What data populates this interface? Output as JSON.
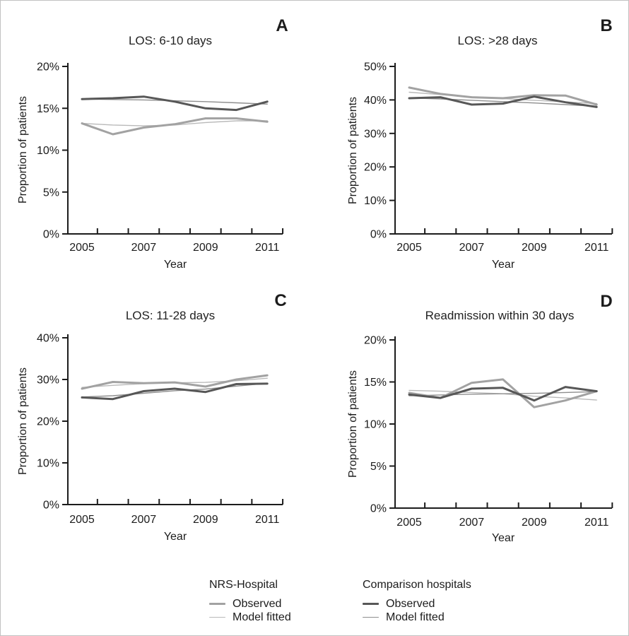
{
  "figure": {
    "text_color": "#1c1c1c",
    "axis_color": "#1c1c1c",
    "background": "#ffffff"
  },
  "series_styles": {
    "nrs_observed": {
      "color": "#a2a2a2",
      "width": 3
    },
    "nrs_fitted": {
      "color": "#b9b9b9",
      "width": 1.4
    },
    "comp_observed": {
      "color": "#575757",
      "width": 3
    },
    "comp_fitted": {
      "color": "#8e8e8e",
      "width": 1.4
    }
  },
  "legend": {
    "groups": [
      {
        "title": "NRS-Hospital",
        "items": [
          {
            "label": "Observed",
            "series": "nrs_observed"
          },
          {
            "label": "Model fitted",
            "series": "nrs_fitted"
          }
        ]
      },
      {
        "title": "Comparison hospitals",
        "items": [
          {
            "label": "Observed",
            "series": "comp_observed"
          },
          {
            "label": "Model fitted",
            "series": "comp_fitted"
          }
        ]
      }
    ]
  },
  "chart_data": [
    {
      "type": "line",
      "panel_letter": "A",
      "title": "LOS: 6-10 days",
      "xlabel": "Year",
      "ylabel": "Proportion of patients",
      "x": [
        2005,
        2006,
        2007,
        2008,
        2009,
        2010,
        2011
      ],
      "x_tick_years": [
        2005,
        2007,
        2009,
        2011
      ],
      "x_tick_labels": [
        "2005",
        "2007",
        "2009",
        "2011"
      ],
      "ylim": [
        0,
        20
      ],
      "y_ticks": [
        0,
        5,
        10,
        15,
        20
      ],
      "y_tick_labels": [
        "0%",
        "5%",
        "10%",
        "15%",
        "20%"
      ],
      "series": [
        {
          "name": "NRS-Hospital Observed",
          "key": "nrs_observed",
          "values": [
            13.2,
            11.9,
            12.7,
            13.1,
            13.8,
            13.8,
            13.4
          ]
        },
        {
          "name": "NRS-Hospital Model fitted",
          "key": "nrs_fitted",
          "values": [
            13.2,
            13.0,
            12.9,
            13.0,
            13.3,
            13.5,
            13.5
          ]
        },
        {
          "name": "Comparison hospitals Observed",
          "key": "comp_observed",
          "values": [
            16.1,
            16.2,
            16.4,
            15.8,
            15.0,
            14.8,
            15.8
          ]
        },
        {
          "name": "Comparison hospitals Model fitted",
          "key": "comp_fitted",
          "values": [
            16.1,
            16.05,
            16.0,
            15.9,
            15.8,
            15.65,
            15.5
          ]
        }
      ]
    },
    {
      "type": "line",
      "panel_letter": "B",
      "title": "LOS: >28 days",
      "xlabel": "Year",
      "ylabel": "Proportion of patients",
      "x": [
        2005,
        2006,
        2007,
        2008,
        2009,
        2010,
        2011
      ],
      "x_tick_years": [
        2005,
        2007,
        2009,
        2011
      ],
      "x_tick_labels": [
        "2005",
        "2007",
        "2009",
        "2011"
      ],
      "ylim": [
        0,
        50
      ],
      "y_ticks": [
        0,
        10,
        20,
        30,
        40,
        50
      ],
      "y_tick_labels": [
        "0%",
        "10%",
        "20%",
        "30%",
        "40%",
        "50%"
      ],
      "series": [
        {
          "name": "NRS-Hospital Observed",
          "key": "nrs_observed",
          "values": [
            43.7,
            41.8,
            40.8,
            40.5,
            41.4,
            41.3,
            38.6
          ]
        },
        {
          "name": "NRS-Hospital Model fitted",
          "key": "nrs_fitted",
          "values": [
            42.3,
            41.6,
            40.9,
            40.4,
            39.9,
            39.4,
            38.9
          ]
        },
        {
          "name": "Comparison hospitals Observed",
          "key": "comp_observed",
          "values": [
            40.5,
            40.8,
            38.6,
            38.9,
            41.0,
            39.3,
            37.9
          ]
        },
        {
          "name": "Comparison hospitals Model fitted",
          "key": "comp_fitted",
          "values": [
            40.6,
            40.3,
            39.9,
            39.5,
            39.1,
            38.6,
            38.1
          ]
        }
      ]
    },
    {
      "type": "line",
      "panel_letter": "C",
      "title": "LOS: 11-28 days",
      "xlabel": "Year",
      "ylabel": "Proportion of patients",
      "x": [
        2005,
        2006,
        2007,
        2008,
        2009,
        2010,
        2011
      ],
      "x_tick_years": [
        2005,
        2007,
        2009,
        2011
      ],
      "x_tick_labels": [
        "2005",
        "2007",
        "2009",
        "2011"
      ],
      "ylim": [
        0,
        40
      ],
      "y_ticks": [
        0,
        10,
        20,
        30,
        40
      ],
      "y_tick_labels": [
        "0%",
        "10%",
        "20%",
        "30%",
        "40%"
      ],
      "series": [
        {
          "name": "NRS-Hospital Observed",
          "key": "nrs_observed",
          "values": [
            27.8,
            29.4,
            29.1,
            29.3,
            28.3,
            30.0,
            31.0
          ]
        },
        {
          "name": "NRS-Hospital Model fitted",
          "key": "nrs_fitted",
          "values": [
            28.1,
            28.6,
            29.0,
            29.2,
            29.3,
            29.7,
            30.3
          ]
        },
        {
          "name": "Comparison hospitals Observed",
          "key": "comp_observed",
          "values": [
            25.7,
            25.3,
            27.2,
            27.8,
            27.0,
            28.9,
            29.0
          ]
        },
        {
          "name": "Comparison hospitals Model fitted",
          "key": "comp_fitted",
          "values": [
            25.8,
            26.1,
            26.7,
            27.3,
            27.7,
            28.4,
            29.1
          ]
        }
      ]
    },
    {
      "type": "line",
      "panel_letter": "D",
      "title": "Readmission within 30 days",
      "xlabel": "Year",
      "ylabel": "Proportion of patients",
      "x": [
        2005,
        2006,
        2007,
        2008,
        2009,
        2010,
        2011
      ],
      "x_tick_years": [
        2005,
        2007,
        2009,
        2011
      ],
      "x_tick_labels": [
        "2005",
        "2007",
        "2009",
        "2011"
      ],
      "ylim": [
        0,
        20
      ],
      "y_ticks": [
        0,
        5,
        10,
        15,
        20
      ],
      "y_tick_labels": [
        "0%",
        "5%",
        "10%",
        "15%",
        "20%"
      ],
      "series": [
        {
          "name": "NRS-Hospital Observed",
          "key": "nrs_observed",
          "values": [
            13.7,
            13.1,
            14.9,
            15.3,
            12.0,
            12.8,
            13.9
          ]
        },
        {
          "name": "NRS-Hospital Model fitted",
          "key": "nrs_fitted",
          "values": [
            14.0,
            13.9,
            13.75,
            13.6,
            13.3,
            13.1,
            12.85
          ]
        },
        {
          "name": "Comparison hospitals Observed",
          "key": "comp_observed",
          "values": [
            13.5,
            13.1,
            14.2,
            14.3,
            12.8,
            14.4,
            13.9
          ]
        },
        {
          "name": "Comparison hospitals Model fitted",
          "key": "comp_fitted",
          "values": [
            13.35,
            13.45,
            13.55,
            13.6,
            13.65,
            13.75,
            13.85
          ]
        }
      ]
    }
  ]
}
